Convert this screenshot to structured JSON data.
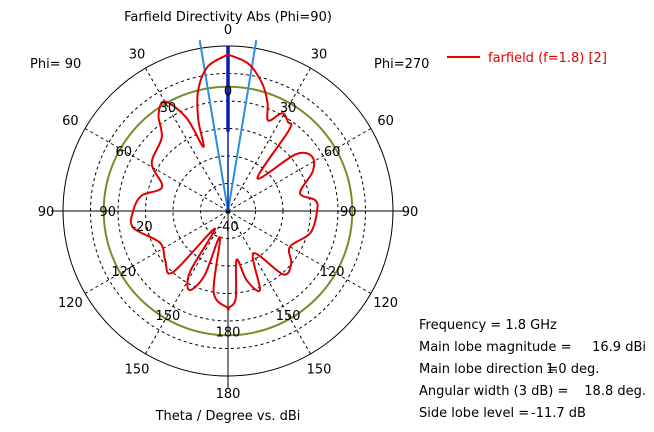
{
  "chart_data": {
    "type": "polar",
    "title": "Farfield Directivity Abs (Phi=90)",
    "xlabel": "Theta / Degree vs. dBi",
    "left_label": "Phi= 90",
    "right_label": "Phi=270",
    "radial_range": [
      -40,
      20
    ],
    "radial_ticks": [
      -30,
      -20,
      -10,
      0,
      10
    ],
    "radial_tick_labels": [
      "-20",
      "-40"
    ],
    "angle_ticks": [
      0,
      30,
      60,
      90,
      120,
      150,
      180
    ],
    "angle_tick_labels": [
      "0",
      "30",
      "60",
      "90",
      "120",
      "150",
      "180"
    ],
    "grid": true,
    "legend": {
      "position": "top-right",
      "entries": [
        {
          "name": "farfield (f=1.8) [2]",
          "color": "#e00000"
        }
      ]
    },
    "side_lobe_ring_dB": 5.2,
    "main_lobe_direction_deg": 1.0,
    "beamwidth_3dB_deg": 18.8,
    "series": [
      {
        "name": "farfield (f=1.8) [2]",
        "side_phi270_theta_dBi": [
          [
            0,
            16.9
          ],
          [
            8,
            14
          ],
          [
            15,
            8
          ],
          [
            20,
            2
          ],
          [
            24,
            -4
          ],
          [
            29,
            0.7
          ],
          [
            34,
            -1
          ],
          [
            37,
            -3
          ],
          [
            42,
            -24
          ],
          [
            50,
            -8
          ],
          [
            57,
            -3.6
          ],
          [
            65,
            -6
          ],
          [
            76,
            -13
          ],
          [
            83,
            -8
          ],
          [
            90,
            -7.6
          ],
          [
            105,
            -9
          ],
          [
            120,
            -14
          ],
          [
            130,
            -10
          ],
          [
            139,
            -9.5
          ],
          [
            149,
            -22
          ],
          [
            158,
            -9
          ],
          [
            165,
            -14
          ],
          [
            170,
            -22
          ],
          [
            175,
            -8
          ],
          [
            180,
            -4.7
          ]
        ],
        "side_phi90_theta_dBi": [
          [
            0,
            16.9
          ],
          [
            8,
            13
          ],
          [
            14,
            5
          ],
          [
            18,
            -5
          ],
          [
            21,
            -15
          ],
          [
            24,
            -3
          ],
          [
            30,
            6
          ],
          [
            36,
            3
          ],
          [
            42,
            -4
          ],
          [
            58,
            -7.3
          ],
          [
            70,
            -14.5
          ],
          [
            80,
            -8
          ],
          [
            90,
            -5.5
          ],
          [
            100,
            -5
          ],
          [
            115,
            -12.7
          ],
          [
            128,
            -11
          ],
          [
            138,
            -10
          ],
          [
            143,
            -32
          ],
          [
            148,
            -14
          ],
          [
            154,
            -8
          ],
          [
            160,
            -15
          ],
          [
            163,
            -30
          ],
          [
            170,
            -10
          ],
          [
            180,
            -4.7
          ]
        ]
      }
    ]
  },
  "info": {
    "frequency_label": "Frequency = 1.8 GHz",
    "magnitude_label": "Main lobe magnitude =",
    "magnitude_value": "16.9 dBi",
    "direction_label": "Main lobe direction =",
    "direction_value": "1.0 deg.",
    "width_label": "Angular width (3 dB) =",
    "width_value": "18.8 deg.",
    "sidelobe_label": "Side lobe level =",
    "sidelobe_value": "-11.7 dB"
  },
  "colors": {
    "pattern": "#e00000",
    "main_lobe": "#0a1fb0",
    "beamwidth": "#2c8ee0",
    "sidelobe_ring": "#7a8c2a",
    "grid": "#000000"
  }
}
